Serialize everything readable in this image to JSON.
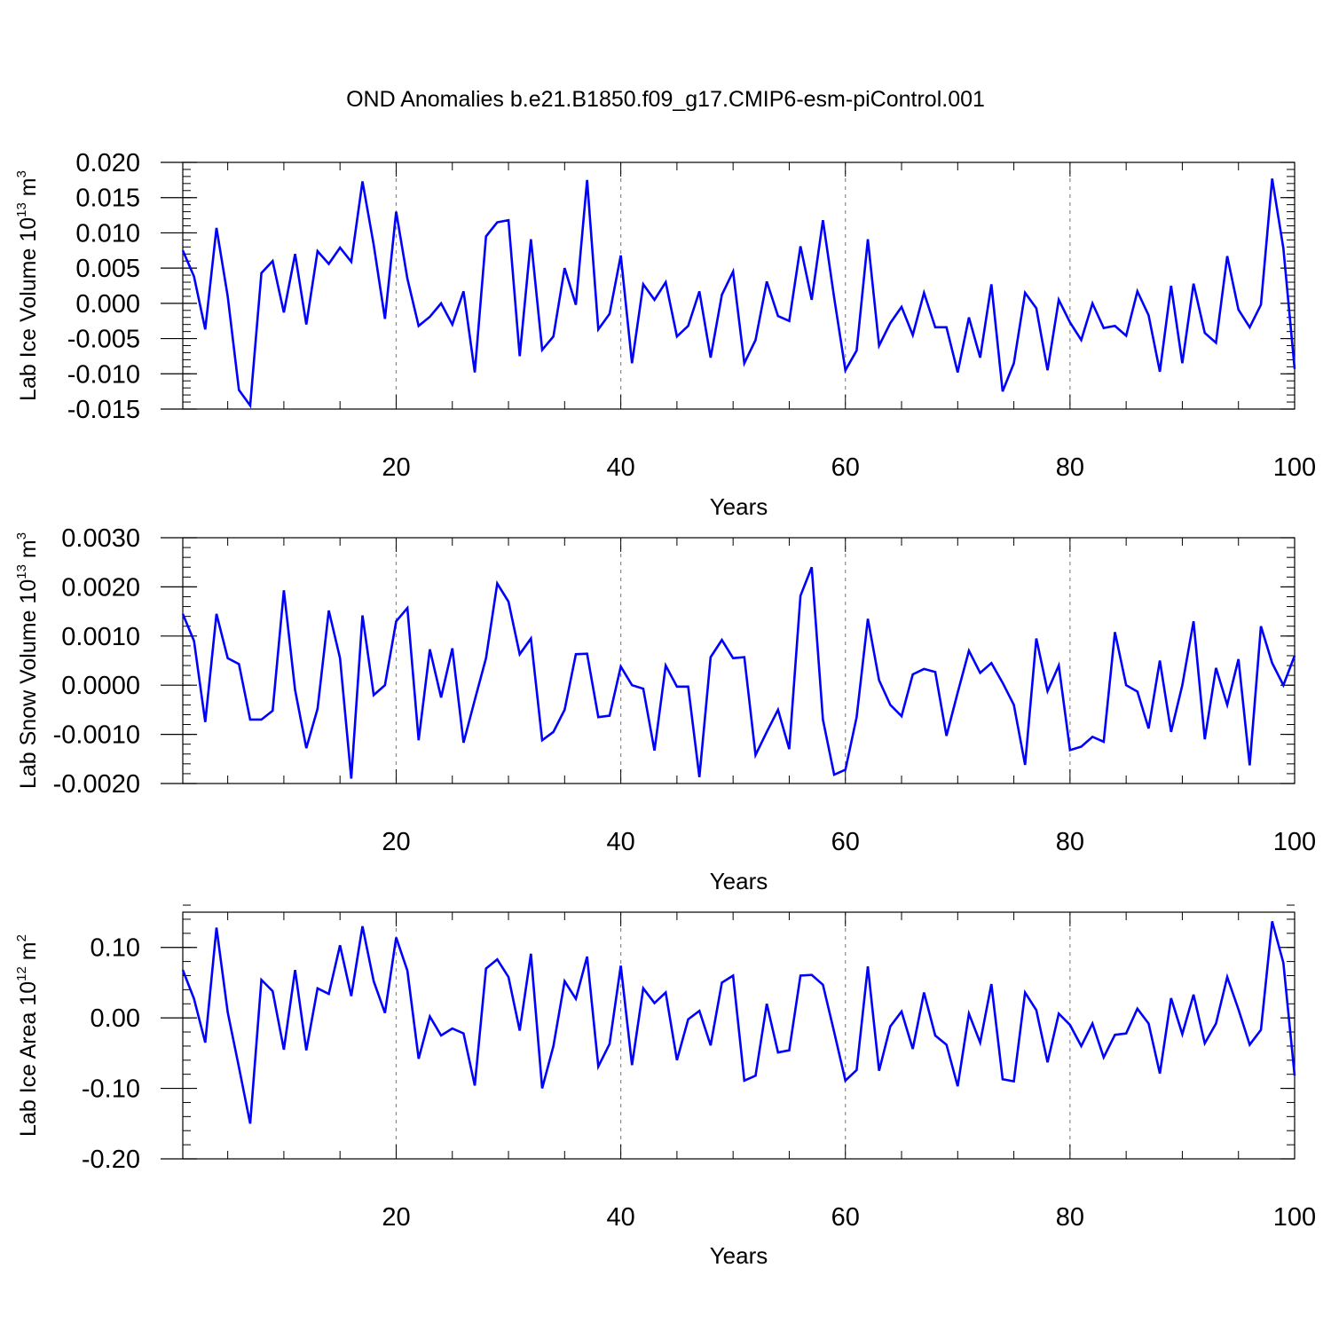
{
  "title": "OND Anomalies b.e21.B1850.f09_g17.CMIP6-esm-piControl.001",
  "line_color": "#0000ff",
  "chart_data": [
    {
      "type": "line",
      "name": "lab-ice-volume",
      "ylabel": {
        "text": "Lab Ice Volume 10",
        "exp": "13",
        "unit": " m",
        "unit_exp": "3"
      },
      "xlabel": "Years",
      "xlim": [
        1,
        100
      ],
      "ylim": [
        -0.015,
        0.02
      ],
      "xticks": [
        20,
        40,
        60,
        80,
        100
      ],
      "xtick_labels": [
        "20",
        "40",
        "60",
        "80",
        "100"
      ],
      "yticks": [
        -0.015,
        -0.01,
        -0.005,
        0,
        0.005,
        0.01,
        0.015,
        0.02
      ],
      "ytick_labels": [
        "-0.015",
        "-0.010",
        "-0.005",
        "0.000",
        "0.005",
        "0.010",
        "0.015",
        "0.020"
      ],
      "yminor_step": 0.001,
      "grid_x": [
        20,
        40,
        60,
        80
      ],
      "series": [
        {
          "name": "Lab Ice Volume",
          "x_start": 1,
          "values": [
            0.0075,
            0.0038,
            -0.0037,
            0.0107,
            0.001,
            -0.0123,
            -0.0145,
            0.0043,
            0.006,
            -0.0013,
            0.007,
            -0.003,
            0.0074,
            0.0056,
            0.0079,
            0.0059,
            0.0173,
            0.0083,
            -0.0022,
            0.013,
            0.0035,
            -0.0032,
            -0.0019,
            0.0,
            -0.003,
            0.0017,
            -0.0098,
            0.0095,
            0.0115,
            0.0118,
            -0.0075,
            0.0091,
            -0.0066,
            -0.0047,
            0.005,
            -0.0002,
            0.0175,
            -0.0037,
            -0.0015,
            0.0068,
            -0.0085,
            0.0027,
            0.0005,
            0.003,
            -0.0047,
            -0.0032,
            0.0017,
            -0.0077,
            0.0012,
            0.0045,
            -0.0085,
            -0.0052,
            0.0031,
            -0.0018,
            -0.0025,
            0.0081,
            0.0005,
            0.0118,
            0.0008,
            -0.0095,
            -0.0067,
            0.0091,
            -0.006,
            -0.0028,
            -0.0005,
            -0.0045,
            0.0015,
            -0.0034,
            -0.0034,
            -0.0098,
            -0.002,
            -0.0077,
            0.0027,
            -0.0125,
            -0.0085,
            0.0015,
            -0.0007,
            -0.0095,
            0.0005,
            -0.0027,
            -0.0052,
            0.0,
            -0.0035,
            -0.0032,
            -0.0046,
            0.0017,
            -0.0017,
            -0.0097,
            0.0025,
            -0.0085,
            0.0028,
            -0.0042,
            -0.0056,
            0.0067,
            -0.0009,
            -0.0034,
            -0.0002,
            0.0177,
            0.0078,
            -0.0093
          ]
        }
      ]
    },
    {
      "type": "line",
      "name": "lab-snow-volume",
      "ylabel": {
        "text": "Lab Snow Volume 10",
        "exp": "13",
        "unit": " m",
        "unit_exp": "3"
      },
      "xlabel": "Years",
      "xlim": [
        1,
        100
      ],
      "ylim": [
        -0.002,
        0.003
      ],
      "xticks": [
        20,
        40,
        60,
        80,
        100
      ],
      "xtick_labels": [
        "20",
        "40",
        "60",
        "80",
        "100"
      ],
      "yticks": [
        -0.002,
        -0.001,
        0,
        0.001,
        0.002,
        0.003
      ],
      "ytick_labels": [
        "-0.0020",
        "-0.0010",
        "0.0000",
        "0.0010",
        "0.0020",
        "0.0030"
      ],
      "yminor_step": 0.0002,
      "grid_x": [
        20,
        40,
        60,
        80
      ],
      "series": [
        {
          "name": "Lab Snow Volume",
          "x_start": 1,
          "values": [
            0.00145,
            0.0009,
            -0.00075,
            0.00145,
            0.00055,
            0.00043,
            -0.0007,
            -0.0007,
            -0.00052,
            0.00193,
            -0.0001,
            -0.00128,
            -0.00048,
            0.00152,
            0.00055,
            -0.0019,
            0.00142,
            -0.0002,
            0.0,
            0.0013,
            0.00157,
            -0.00112,
            0.00073,
            -0.00025,
            0.00075,
            -0.00117,
            -0.0003,
            0.00055,
            0.00207,
            0.0017,
            0.00063,
            0.00095,
            -0.00112,
            -0.00095,
            -0.0005,
            0.00063,
            0.00064,
            -0.00065,
            -0.00062,
            0.00038,
            0.0,
            -7e-05,
            -0.00133,
            0.0004,
            -3e-05,
            -3e-05,
            -0.00187,
            0.00057,
            0.00092,
            0.00055,
            0.00057,
            -0.00142,
            -0.00095,
            -0.0005,
            -0.0013,
            0.00182,
            0.0024,
            -0.0007,
            -0.00182,
            -0.00172,
            -0.00065,
            0.00135,
            0.0001,
            -0.0004,
            -0.00063,
            0.00022,
            0.00033,
            0.00027,
            -0.00103,
            -0.00015,
            0.0007,
            0.00025,
            0.00045,
            5e-05,
            -0.0004,
            -0.00162,
            0.00095,
            -0.00012,
            0.0004,
            -0.00132,
            -0.00125,
            -0.00105,
            -0.00115,
            0.00108,
            0.0,
            -0.00013,
            -0.00088,
            0.0005,
            -0.00095,
            0.0,
            0.0013,
            -0.0011,
            0.00035,
            -0.0004,
            0.00053,
            -0.00163,
            0.0012,
            0.00045,
            0.0,
            0.0006
          ]
        }
      ]
    },
    {
      "type": "line",
      "name": "lab-ice-area",
      "ylabel": {
        "text": "Lab Ice Area 10",
        "exp": "12",
        "unit": " m",
        "unit_exp": "2"
      },
      "xlabel": "Years",
      "xlim": [
        1,
        100
      ],
      "ylim": [
        -0.2,
        0.15
      ],
      "xticks": [
        20,
        40,
        60,
        80,
        100
      ],
      "xtick_labels": [
        "20",
        "40",
        "60",
        "80",
        "100"
      ],
      "yticks": [
        -0.2,
        -0.1,
        0,
        0.1
      ],
      "ytick_labels": [
        "-0.20",
        "-0.10",
        "0.00",
        "0.10"
      ],
      "yminor_step": 0.02,
      "grid_x": [
        20,
        40,
        60,
        80
      ],
      "series": [
        {
          "name": "Lab Ice Area",
          "x_start": 1,
          "values": [
            0.068,
            0.027,
            -0.035,
            0.128,
            0.008,
            -0.07,
            -0.15,
            0.054,
            0.038,
            -0.045,
            0.068,
            -0.046,
            0.042,
            0.034,
            0.103,
            0.031,
            0.13,
            0.052,
            0.007,
            0.114,
            0.067,
            -0.058,
            0.002,
            -0.025,
            -0.015,
            -0.022,
            -0.096,
            0.07,
            0.083,
            0.058,
            -0.018,
            0.091,
            -0.1,
            -0.04,
            0.052,
            0.027,
            0.087,
            -0.069,
            -0.037,
            0.074,
            -0.067,
            0.042,
            0.021,
            0.036,
            -0.06,
            -0.002,
            0.01,
            -0.039,
            0.05,
            0.06,
            -0.089,
            -0.082,
            0.02,
            -0.049,
            -0.046,
            0.06,
            0.061,
            0.047,
            -0.02,
            -0.089,
            -0.074,
            0.073,
            -0.075,
            -0.012,
            0.009,
            -0.044,
            0.036,
            -0.025,
            -0.038,
            -0.097,
            0.006,
            -0.035,
            0.048,
            -0.087,
            -0.09,
            0.036,
            0.011,
            -0.063,
            0.006,
            -0.01,
            -0.04,
            -0.008,
            -0.056,
            -0.024,
            -0.022,
            0.013,
            -0.008,
            -0.079,
            0.028,
            -0.023,
            0.033,
            -0.036,
            -0.008,
            0.058,
            0.012,
            -0.038,
            -0.017,
            0.137,
            0.078,
            -0.082
          ]
        }
      ]
    }
  ]
}
